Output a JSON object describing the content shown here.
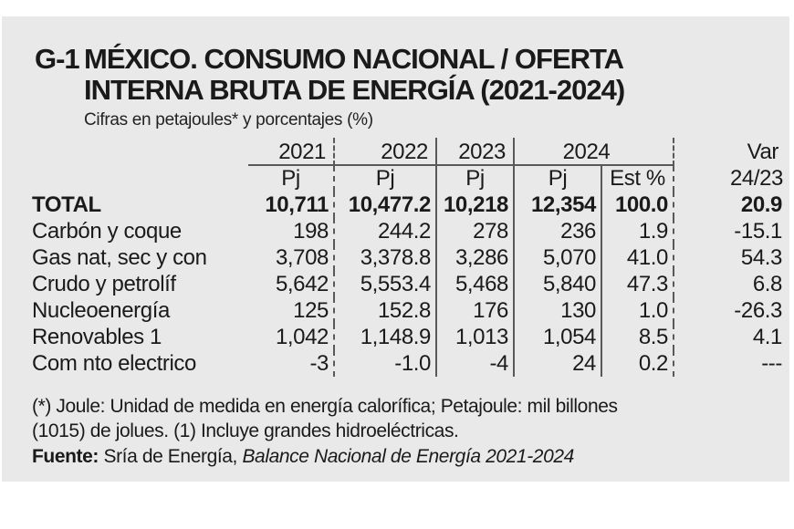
{
  "header": {
    "tag": "G-1",
    "title_line1": "MÉXICO. CONSUMO NACIONAL / OFERTA",
    "title_line2": "INTERNA BRUTA DE ENERGÍA (2021-2024)",
    "subtitle": "Cifras en petajoules* y porcentajes (%)"
  },
  "chart_data": {
    "type": "table",
    "title": "G-1 MÉXICO. CONSUMO NACIONAL / OFERTA INTERNA BRUTA DE ENERGÍA (2021-2024)",
    "units_note": "Cifras en petajoules* y porcentajes (%)",
    "year_groups": [
      {
        "label": "2021",
        "span": 1
      },
      {
        "label": "2022",
        "span": 1
      },
      {
        "label": "2023",
        "span": 1
      },
      {
        "label": "2024",
        "span": 2
      },
      {
        "label": "Var",
        "span": 1
      }
    ],
    "sub_headers": [
      "Pj",
      "Pj",
      "Pj",
      "Pj",
      "Est %",
      "24/23"
    ],
    "rows": [
      {
        "label": "TOTAL",
        "bold": true,
        "values": [
          "10,711",
          "10,477.2",
          "10,218",
          "12,354",
          "100.0",
          "20.9"
        ]
      },
      {
        "label": "Carbón y coque",
        "bold": false,
        "values": [
          "198",
          "244.2",
          "278",
          "236",
          "1.9",
          "-15.1"
        ]
      },
      {
        "label": "Gas nat, sec y con",
        "bold": false,
        "values": [
          "3,708",
          "3,378.8",
          "3,286",
          "5,070",
          "41.0",
          "54.3"
        ]
      },
      {
        "label": "Crudo y petrolíf",
        "bold": false,
        "values": [
          "5,642",
          "5,553.4",
          "5,468",
          "5,840",
          "47.3",
          "6.8"
        ]
      },
      {
        "label": "Nucleoenergía",
        "bold": false,
        "values": [
          "125",
          "152.8",
          "176",
          "130",
          "1.0",
          "-26.3"
        ]
      },
      {
        "label": "Renovables 1",
        "bold": false,
        "values": [
          "1,042",
          "1,148.9",
          "1,013",
          "1,054",
          "8.5",
          "4.1"
        ]
      },
      {
        "label": "Com nto electrico",
        "bold": false,
        "values": [
          "-3",
          "-1.0",
          "-4",
          "24",
          "0.2",
          "---"
        ]
      }
    ]
  },
  "footer": {
    "note_line1": "(*) Joule: Unidad de medida en energía calorífica; Petajoule: mil billones",
    "note_line2": "(1015) de jolues. (1) Incluye grandes hidroeléctricas.",
    "source_label": "Fuente:",
    "source_plain": " Sría de Energía, ",
    "source_italic": "Balance Nacional de Energía 2021-2024"
  },
  "colors": {
    "panel_bg": "#e9e9e9",
    "text": "#1a1a1a",
    "rule": "#595959"
  }
}
